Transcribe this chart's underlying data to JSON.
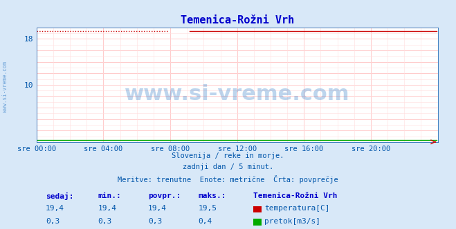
{
  "title": "Temenica-Rožni Vrh",
  "title_color": "#0000cc",
  "background_color": "#d8e8f8",
  "plot_bg_color": "#ffffff",
  "figsize": [
    6.59,
    3.32
  ],
  "dpi": 100,
  "xlim": [
    0,
    288
  ],
  "ylim": [
    0,
    20
  ],
  "ytick_positions": [
    0,
    2,
    4,
    6,
    8,
    10,
    12,
    14,
    16,
    18,
    20
  ],
  "ytick_labels": [
    "",
    "",
    "",
    "",
    "",
    "10",
    "",
    "",
    "",
    "18",
    ""
  ],
  "xtick_positions": [
    0,
    48,
    96,
    144,
    192,
    240,
    288
  ],
  "xtick_labels": [
    "sre 00:00",
    "sre 04:00",
    "sre 08:00",
    "sre 12:00",
    "sre 16:00",
    "sre 20:00",
    ""
  ],
  "temp_value": 19.4,
  "flow_value": 0.3,
  "temp_color": "#cc0000",
  "flow_color": "#00aa00",
  "grid_color_major": "#ffaaaa",
  "grid_color_minor": "#ffdddd",
  "watermark": "www.si-vreme.com",
  "watermark_color": "#4488cc",
  "sidebar_text": "www.si-vreme.com",
  "subtitle_lines": [
    "Slovenija / reke in morje.",
    "zadnji dan / 5 minut.",
    "Meritve: trenutne  Enote: metrične  Črta: povprečje"
  ],
  "subtitle_color": "#0055aa",
  "table_headers": [
    "sedaj:",
    "min.:",
    "povpr.:",
    "maks.:"
  ],
  "table_header_color": "#0000cc",
  "table_values_temp": [
    "19,4",
    "19,4",
    "19,4",
    "19,5"
  ],
  "table_values_flow": [
    "0,3",
    "0,3",
    "0,3",
    "0,4"
  ],
  "table_value_color": "#0055aa",
  "legend_title": "Temenica-Rožni Vrh",
  "legend_title_color": "#0000cc",
  "legend_temp_label": "temperatura[C]",
  "legend_flow_label": "pretok[m3/s]",
  "legend_color": "#0055aa",
  "tick_label_color": "#0055aa",
  "arrow_color": "#cc0000",
  "gap_start": 96,
  "gap_end": 110,
  "n_points": 288
}
